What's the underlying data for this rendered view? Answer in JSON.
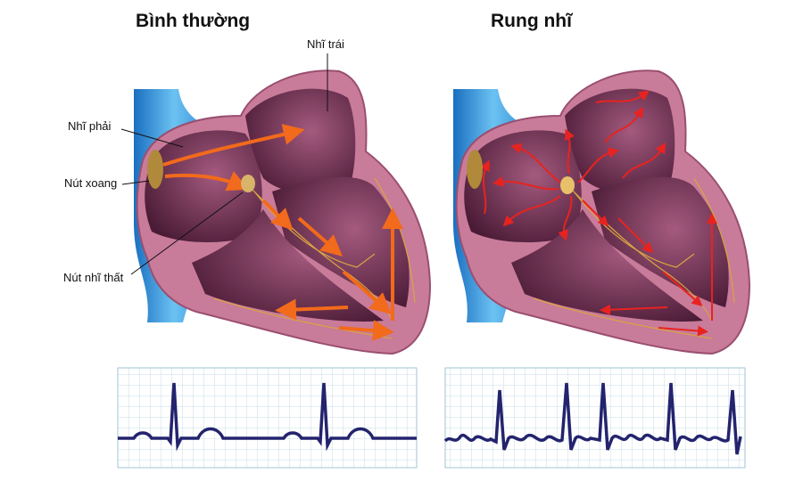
{
  "panels": {
    "normal": {
      "title": "Bình thường"
    },
    "afib": {
      "title": "Rung nhĩ"
    }
  },
  "labels": {
    "left_atrium": "Nhĩ trái",
    "right_atrium": "Nhĩ phải",
    "sinus_node": "Nút xoang",
    "av_node": "Nút nhĩ thất"
  },
  "colors": {
    "vein": "#2a8fd8",
    "heart_wall": "#c97b9a",
    "chamber": "#5c2444",
    "conduction_arrow_normal": "#f26a1b",
    "conduction_arrow_afib": "#e8231f",
    "node": "#c9a24a",
    "ecg_line": "#23236e",
    "ecg_grid": "#9fc4d6"
  }
}
